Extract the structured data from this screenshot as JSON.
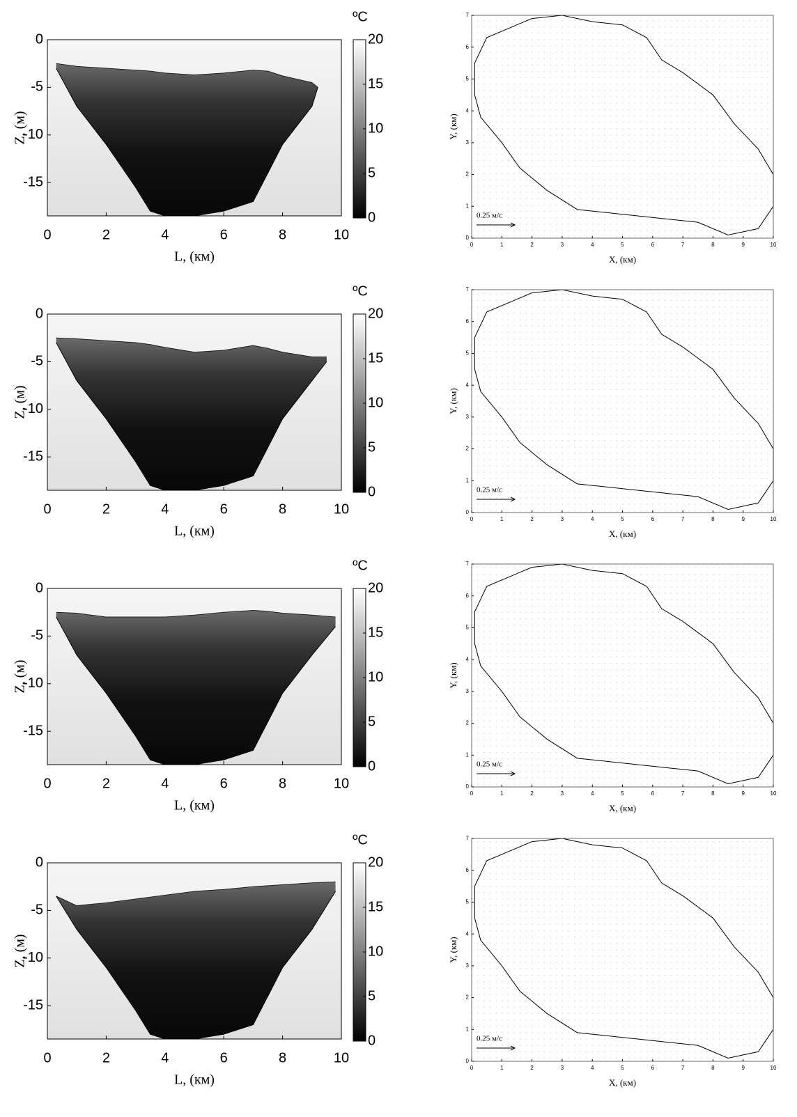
{
  "chart_data": [
    {
      "type": "section",
      "xlabel": "L, (км)",
      "ylabel": "Z, (м)",
      "xlim": [
        0,
        10
      ],
      "ylim": [
        -18.5,
        0
      ],
      "xticks": [
        0,
        2,
        4,
        6,
        8,
        10
      ],
      "yticks": [
        0,
        -5,
        -10,
        -15
      ],
      "colorbar_label": "ºC",
      "clim": [
        0,
        20
      ],
      "cticks": [
        0,
        5,
        10,
        15,
        20
      ],
      "x": [
        0.3,
        1,
        2,
        3,
        3.5,
        4,
        5,
        6,
        7,
        7.5,
        8,
        9,
        9.2
      ],
      "surface": [
        -2.5,
        -2.8,
        -3,
        -3.2,
        -3.3,
        -3.5,
        -3.7,
        -3.5,
        -3.2,
        -3.3,
        -3.8,
        -4.5,
        -5
      ],
      "bottom": [
        -3,
        -7,
        -11,
        -15.5,
        -18,
        -18.5,
        -18.5,
        -18,
        -17,
        -14,
        -11,
        -7,
        -5
      ]
    },
    {
      "type": "quiver",
      "xlabel": "X, (км)",
      "ylabel": "Y, (км)",
      "xlim": [
        0,
        10
      ],
      "ylim": [
        0,
        7
      ],
      "xticks": [
        0,
        1,
        2,
        3,
        4,
        5,
        6,
        7,
        8,
        9,
        10
      ],
      "yticks": [
        0,
        1,
        2,
        3,
        4,
        5,
        6,
        7
      ],
      "reference_arrow": {
        "value": 0.25,
        "label": "0.25 м/с"
      },
      "outline": {
        "x": [
          0.1,
          0.5,
          1.5,
          2,
          3,
          4,
          5,
          5.8,
          6.3,
          7,
          8,
          8.7,
          9.5,
          10,
          10,
          9.5,
          8.5,
          7.5,
          6.5,
          5.5,
          4.5,
          3.5,
          2.5,
          1.6,
          1,
          0.3,
          0.1
        ],
        "y": [
          5.5,
          6.3,
          6.7,
          6.9,
          7,
          6.8,
          6.7,
          6.3,
          5.6,
          5.2,
          4.5,
          3.6,
          2.8,
          2,
          1,
          0.3,
          0.1,
          0.5,
          0.6,
          0.7,
          0.8,
          0.9,
          1.5,
          2.2,
          3,
          3.8,
          4.5
        ]
      }
    },
    {
      "type": "section",
      "xlabel": "L, (км)",
      "ylabel": "Z, (м)",
      "xlim": [
        0,
        10
      ],
      "ylim": [
        -18.5,
        0
      ],
      "xticks": [
        0,
        2,
        4,
        6,
        8,
        10
      ],
      "yticks": [
        0,
        -5,
        -10,
        -15
      ],
      "colorbar_label": "ºC",
      "clim": [
        0,
        20
      ],
      "cticks": [
        0,
        5,
        10,
        15,
        20
      ],
      "x": [
        0.3,
        1,
        2,
        3,
        3.5,
        4,
        5,
        6,
        7,
        7.5,
        8,
        9,
        9.5
      ],
      "surface": [
        -2.5,
        -2.6,
        -2.8,
        -3,
        -3.2,
        -3.5,
        -4,
        -3.8,
        -3.3,
        -3.6,
        -4,
        -4.5,
        -4.5
      ],
      "bottom": [
        -3,
        -7,
        -11,
        -15.5,
        -18,
        -18.5,
        -18.5,
        -18,
        -17,
        -14,
        -11,
        -7,
        -5
      ]
    },
    {
      "type": "quiver",
      "xlabel": "X, (км)",
      "ylabel": "Y, (км)",
      "xlim": [
        0,
        10
      ],
      "ylim": [
        0,
        7
      ],
      "xticks": [
        0,
        1,
        2,
        3,
        4,
        5,
        6,
        7,
        8,
        9,
        10
      ],
      "yticks": [
        0,
        1,
        2,
        3,
        4,
        5,
        6,
        7
      ],
      "reference_arrow": {
        "value": 0.25,
        "label": "0.25 м/с"
      },
      "outline": {
        "x": [
          0.1,
          0.5,
          1.5,
          2,
          3,
          4,
          5,
          5.8,
          6.3,
          7,
          8,
          8.7,
          9.5,
          10,
          10,
          9.5,
          8.5,
          7.5,
          6.5,
          5.5,
          4.5,
          3.5,
          2.5,
          1.6,
          1,
          0.3,
          0.1
        ],
        "y": [
          5.5,
          6.3,
          6.7,
          6.9,
          7,
          6.8,
          6.7,
          6.3,
          5.6,
          5.2,
          4.5,
          3.6,
          2.8,
          2,
          1,
          0.3,
          0.1,
          0.5,
          0.6,
          0.7,
          0.8,
          0.9,
          1.5,
          2.2,
          3,
          3.8,
          4.5
        ]
      }
    },
    {
      "type": "section",
      "xlabel": "L, (км)",
      "ylabel": "Z, (м)",
      "xlim": [
        0,
        10
      ],
      "ylim": [
        -18.5,
        0
      ],
      "xticks": [
        0,
        2,
        4,
        6,
        8,
        10
      ],
      "yticks": [
        0,
        -5,
        -10,
        -15
      ],
      "colorbar_label": "ºC",
      "clim": [
        0,
        20
      ],
      "cticks": [
        0,
        5,
        10,
        15,
        20
      ],
      "x": [
        0.3,
        1,
        2,
        3,
        3.5,
        4,
        5,
        6,
        7,
        7.5,
        8,
        9,
        9.8
      ],
      "surface": [
        -2.5,
        -2.6,
        -3,
        -3,
        -3,
        -3,
        -2.8,
        -2.5,
        -2.3,
        -2.4,
        -2.6,
        -2.8,
        -3
      ],
      "bottom": [
        -3,
        -7,
        -11,
        -15.5,
        -18,
        -18.5,
        -18.5,
        -18,
        -17,
        -14,
        -11,
        -7,
        -4
      ]
    },
    {
      "type": "quiver",
      "xlabel": "X, (км)",
      "ylabel": "Y, (км)",
      "xlim": [
        0,
        10
      ],
      "ylim": [
        0,
        7
      ],
      "xticks": [
        0,
        1,
        2,
        3,
        4,
        5,
        6,
        7,
        8,
        9,
        10
      ],
      "yticks": [
        0,
        1,
        2,
        3,
        4,
        5,
        6,
        7
      ],
      "reference_arrow": {
        "value": 0.25,
        "label": "0.25 м/с"
      },
      "outline": {
        "x": [
          0.1,
          0.5,
          1.5,
          2,
          3,
          4,
          5,
          5.8,
          6.3,
          7,
          8,
          8.7,
          9.5,
          10,
          10,
          9.5,
          8.5,
          7.5,
          6.5,
          5.5,
          4.5,
          3.5,
          2.5,
          1.6,
          1,
          0.3,
          0.1
        ],
        "y": [
          5.5,
          6.3,
          6.7,
          6.9,
          7,
          6.8,
          6.7,
          6.3,
          5.6,
          5.2,
          4.5,
          3.6,
          2.8,
          2,
          1,
          0.3,
          0.1,
          0.5,
          0.6,
          0.7,
          0.8,
          0.9,
          1.5,
          2.2,
          3,
          3.8,
          4.5
        ]
      }
    },
    {
      "type": "section",
      "xlabel": "L, (км)",
      "ylabel": "Z, (м)",
      "xlim": [
        0,
        10
      ],
      "ylim": [
        -18.5,
        0
      ],
      "xticks": [
        0,
        2,
        4,
        6,
        8,
        10
      ],
      "yticks": [
        0,
        -5,
        -10,
        -15
      ],
      "colorbar_label": "ºC",
      "clim": [
        0,
        20
      ],
      "cticks": [
        0,
        5,
        10,
        15,
        20
      ],
      "x": [
        0.3,
        1,
        2,
        3,
        3.5,
        4,
        5,
        6,
        7,
        7.5,
        8,
        9,
        9.8
      ],
      "surface": [
        -3.5,
        -4.5,
        -4.2,
        -3.8,
        -3.6,
        -3.4,
        -3,
        -2.8,
        -2.5,
        -2.4,
        -2.3,
        -2.1,
        -2
      ],
      "bottom": [
        -3.5,
        -7,
        -11,
        -15.5,
        -18,
        -18.5,
        -18.5,
        -18,
        -17,
        -14,
        -11,
        -7,
        -3
      ]
    },
    {
      "type": "quiver",
      "xlabel": "X, (км)",
      "ylabel": "Y, (км)",
      "xlim": [
        0,
        10
      ],
      "ylim": [
        0,
        7
      ],
      "xticks": [
        0,
        1,
        2,
        3,
        4,
        5,
        6,
        7,
        8,
        9,
        10
      ],
      "yticks": [
        0,
        1,
        2,
        3,
        4,
        5,
        6,
        7
      ],
      "reference_arrow": {
        "value": 0.25,
        "label": "0.25 м/с"
      },
      "outline": {
        "x": [
          0.1,
          0.5,
          1.5,
          2,
          3,
          4,
          5,
          5.8,
          6.3,
          7,
          8,
          8.7,
          9.5,
          10,
          10,
          9.5,
          8.5,
          7.5,
          6.5,
          5.5,
          4.5,
          3.5,
          2.5,
          1.6,
          1,
          0.3,
          0.1
        ],
        "y": [
          5.5,
          6.3,
          6.7,
          6.9,
          7,
          6.8,
          6.7,
          6.3,
          5.6,
          5.2,
          4.5,
          3.6,
          2.8,
          2,
          1,
          0.3,
          0.1,
          0.5,
          0.6,
          0.7,
          0.8,
          0.9,
          1.5,
          2.2,
          3,
          3.8,
          4.5
        ]
      }
    }
  ]
}
